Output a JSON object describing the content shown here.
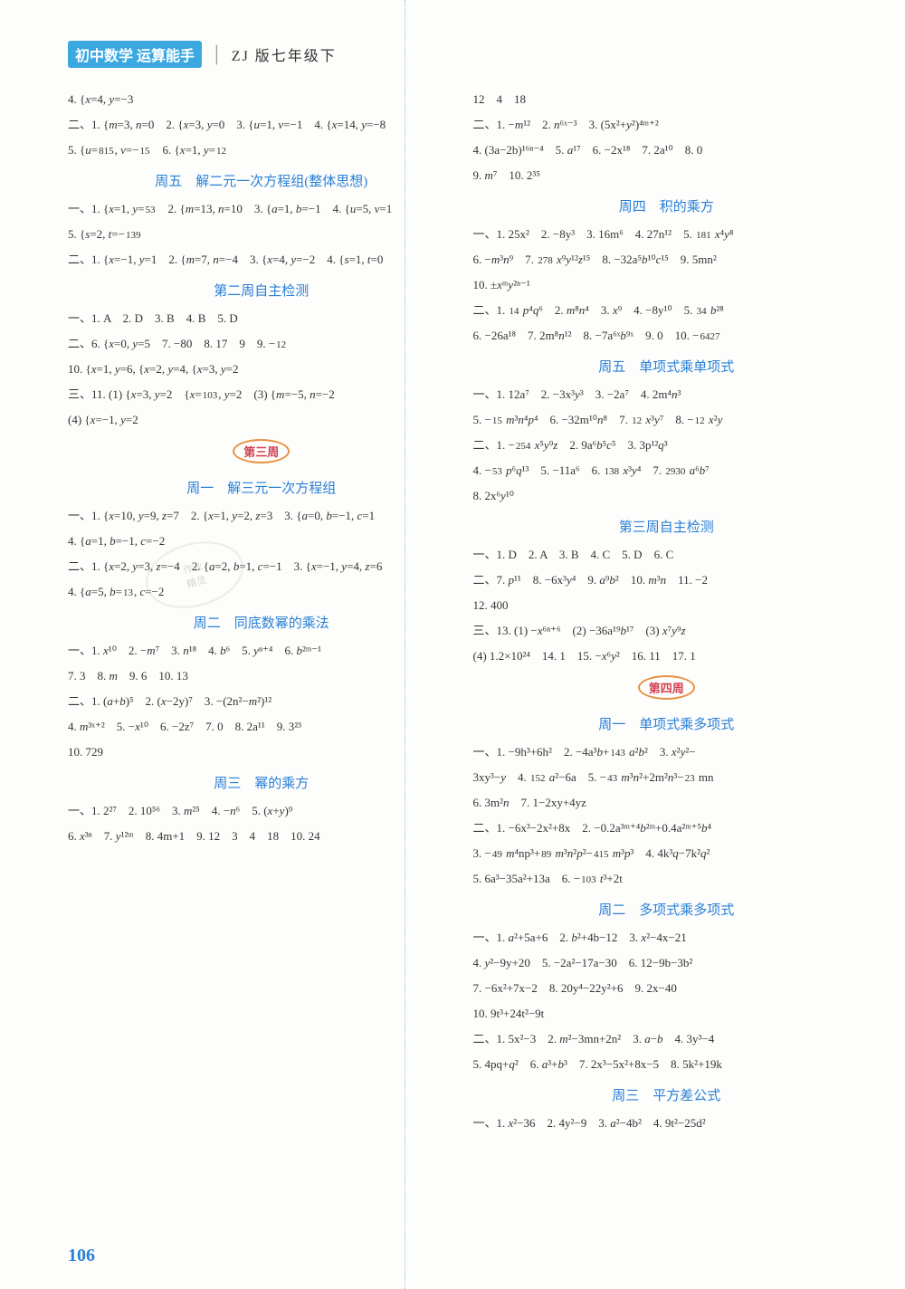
{
  "header": {
    "badge_left": "初中数学",
    "badge_right": "运算能手",
    "subtitle": "ZJ 版七年级下"
  },
  "page_number": "106",
  "watermark": {
    "l1": "作业",
    "l2": "精灵"
  },
  "left_column": [
    {
      "type": "line",
      "text": "4. {x=4, y=−3"
    },
    {
      "type": "line",
      "text": "二、1. {m=3, n=0　2. {x=3, y=0　3. {u=1, v=−1　4. {x=14, y=−8"
    },
    {
      "type": "line",
      "text": "5. {u=8/15, v=−1/5　6. {x=1, y=1/2"
    },
    {
      "type": "title",
      "text": "周五　解二元一次方程组(整体思想)"
    },
    {
      "type": "line",
      "text": "一、1. {x=1, y=5/3　2. {m=13, n=10　3. {a=1, b=−1　4. {u=5, v=1"
    },
    {
      "type": "line",
      "text": "5. {s=2, t=−13/9"
    },
    {
      "type": "line",
      "text": "二、1. {x=−1, y=1　2. {m=7, n=−4　3. {x=4, y=−2　4. {s=1, t=0"
    },
    {
      "type": "title",
      "text": "第二周自主检测"
    },
    {
      "type": "line",
      "text": "一、1. A　2. D　3. B　4. B　5. D"
    },
    {
      "type": "line",
      "text": "二、6. {x=0, y=5　7. −80　8. 17　9　9. −1/2"
    },
    {
      "type": "line",
      "text": "10. {x=1, y=6, {x=2, y=4, {x=3, y=2"
    },
    {
      "type": "line",
      "text": "三、11. (1) {x=3, y=2　{x=10/3, y=2　(3) {m=−5, n=−2"
    },
    {
      "type": "line",
      "text": "(4) {x=−1, y=2"
    },
    {
      "type": "badge",
      "text": "第三周"
    },
    {
      "type": "title",
      "text": "周一　解三元一次方程组"
    },
    {
      "type": "line",
      "text": "一、1. {x=10, y=9, z=7　2. {x=1, y=2, z=3　3. {a=0, b=−1, c=1"
    },
    {
      "type": "line",
      "text": "4. {a=1, b=−1, c=−2"
    },
    {
      "type": "line",
      "text": "二、1. {x=2, y=3, z=−4　2. {a=2, b=1, c=−1　3. {x=−1, y=4, z=6"
    },
    {
      "type": "line",
      "text": "4. {a=5, b=1/3, c=−2"
    },
    {
      "type": "title",
      "text": "周二　同底数幂的乘法"
    },
    {
      "type": "line",
      "text": "一、1. x¹⁰　2. −m⁷　3. n¹⁸　4. b⁶　5. yⁿ⁺⁴　6. b²ᵐ⁻¹"
    },
    {
      "type": "line",
      "text": "7. 3　8. m　9. 6　10. 13"
    },
    {
      "type": "line",
      "text": "二、1. (a+b)⁵　2. (x−2y)⁷　3. −(2n²−m²)¹²"
    },
    {
      "type": "line",
      "text": "4. m³ˣ⁺²　5. −x¹⁰　6. −2z⁷　7. 0　8. 2a¹¹　9. 3²³"
    },
    {
      "type": "line",
      "text": "10. 729"
    },
    {
      "type": "title",
      "text": "周三　幂的乘方"
    },
    {
      "type": "line",
      "text": "一、1. 2²⁷　2. 10⁵⁶　3. m²⁵　4. −n⁶　5. (x+y)⁹"
    },
    {
      "type": "line",
      "text": "6. x³ⁿ　7. y¹²ᵐ　8. 4m+1　9. 12　3　4　18　10. 24"
    }
  ],
  "right_column": [
    {
      "type": "line",
      "text": "12　4　18"
    },
    {
      "type": "line",
      "text": "二、1. −m¹²　2. n⁶ˣ⁻³　3. (5x²+y²)⁴ᵐ⁺²"
    },
    {
      "type": "line",
      "text": "4. (3a−2b)¹⁶ⁿ⁻⁴　5. a¹⁷　6. −2x¹⁸　7. 2a¹⁰　8. 0"
    },
    {
      "type": "line",
      "text": "9. m⁷　10. 2³⁵"
    },
    {
      "type": "title",
      "text": "周四　积的乘方"
    },
    {
      "type": "line",
      "text": "一、1. 25x²　2. −8y³　3. 16m⁶　4. 27n¹²　5. 1/81 x⁴y⁸"
    },
    {
      "type": "line",
      "text": "6. −m³n⁹　7. 27/8 x⁹y¹²z¹⁵　8. −32a⁵b¹⁰c¹⁵　9. 5mn²"
    },
    {
      "type": "line",
      "text": "10. ±xᵐy²ⁿ⁻¹"
    },
    {
      "type": "line",
      "text": "二、1. 1/4 p⁴q⁶　2. m⁸n⁴　3. x⁹　4. −8y¹⁰　5. 3/4 b²⁸"
    },
    {
      "type": "line",
      "text": "6. −26a¹⁸　7. 2m⁸n¹²　8. −7a⁶ˣb⁹ˣ　9. 0　10. −64/27"
    },
    {
      "type": "title",
      "text": "周五　单项式乘单项式"
    },
    {
      "type": "line",
      "text": "一、1. 12a⁷　2. −3x³y³　3. −2a⁷　4. 2m⁴n³"
    },
    {
      "type": "line",
      "text": "5. −1/5 m³n⁴p⁴　6. −32m¹⁰n⁸　7. 1/2 x³y⁷　8. −1/2 x²y"
    },
    {
      "type": "line",
      "text": "二、1. −25/4 x⁵y⁹z　2. 9a⁶b⁵c⁵　3. 3p¹²q³"
    },
    {
      "type": "line",
      "text": "4. −5/3 p⁶q¹³　5. −11a⁶　6. 13/8 x³y⁴　7. 29/30 a⁶b⁷"
    },
    {
      "type": "line",
      "text": "8. 2x⁶y¹⁰"
    },
    {
      "type": "title",
      "text": "第三周自主检测"
    },
    {
      "type": "line",
      "text": "一、1. D　2. A　3. B　4. C　5. D　6. C"
    },
    {
      "type": "line",
      "text": "二、7. p¹¹　8. −6x³y⁴　9. a⁹b²　10. m³n　11. −2"
    },
    {
      "type": "line",
      "text": "12. 400"
    },
    {
      "type": "line",
      "text": "三、13. (1) −x⁶ⁿ⁺⁶　(2) −36a¹⁹b¹⁷　(3) x⁷y⁹z"
    },
    {
      "type": "line",
      "text": "(4) 1.2×10²⁴　14. 1　15. −x⁶y²　16. 11　17. 1"
    },
    {
      "type": "badge",
      "text": "第四周"
    },
    {
      "type": "title",
      "text": "周一　单项式乘多项式"
    },
    {
      "type": "line",
      "text": "一、1. −9h³+6h²　2. −4a³b+14/3 a²b²　3. x²y²−"
    },
    {
      "type": "line",
      "text": "3xy³−y　4. 15/2 a²−6a　5. −4/3 m³n²+2m²n³−2/3 mn"
    },
    {
      "type": "line",
      "text": "6. 3m²n　7. 1−2xy+4yz"
    },
    {
      "type": "line",
      "text": "二、1. −6x³−2x²+8x　2. −0.2a³ᵐ⁺⁴b²ᵐ+0.4a²ᵐ⁺⁵b⁴"
    },
    {
      "type": "line",
      "text": "3. −4/9 m⁴np³+8/9 m³n²p²−4/15 m³p³　4. 4k³q−7k²q²"
    },
    {
      "type": "line",
      "text": "5. 6a³−35a²+13a　6. −10/3 t³+2t"
    },
    {
      "type": "title",
      "text": "周二　多项式乘多项式"
    },
    {
      "type": "line",
      "text": "一、1. a²+5a+6　2. b²+4b−12　3. x²−4x−21"
    },
    {
      "type": "line",
      "text": "4. y²−9y+20　5. −2a²−17a−30　6. 12−9b−3b²"
    },
    {
      "type": "line",
      "text": "7. −6x²+7x−2　8. 20y⁴−22y²+6　9. 2x−40"
    },
    {
      "type": "line",
      "text": "10. 9t³+24t²−9t"
    },
    {
      "type": "line",
      "text": "二、1. 5x²−3　2. m²−3mn+2n²　3. a−b　4. 3y³−4"
    },
    {
      "type": "line",
      "text": "5. 4pq+q²　6. a³+b³　7. 2x³−5x²+8x−5　8. 5k²+19k"
    },
    {
      "type": "title",
      "text": "周三　平方差公式"
    },
    {
      "type": "line",
      "text": "一、1. x²−36　2. 4y²−9　3. a²−4b²　4. 9t²−25d²"
    }
  ]
}
